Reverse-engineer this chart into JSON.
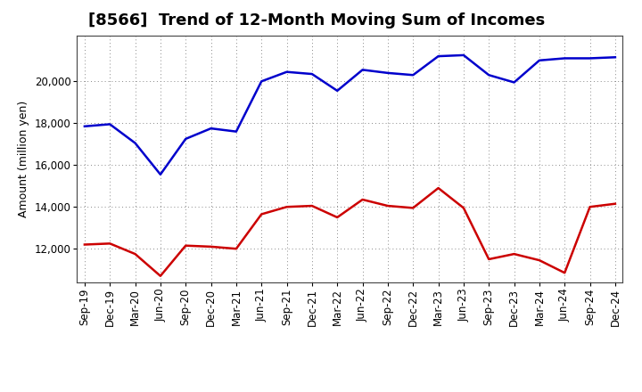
{
  "title": "[8566]  Trend of 12-Month Moving Sum of Incomes",
  "ylabel": "Amount (million yen)",
  "x_labels": [
    "Sep-19",
    "Dec-19",
    "Mar-20",
    "Jun-20",
    "Sep-20",
    "Dec-20",
    "Mar-21",
    "Jun-21",
    "Sep-21",
    "Dec-21",
    "Mar-22",
    "Jun-22",
    "Sep-22",
    "Dec-22",
    "Mar-23",
    "Jun-23",
    "Sep-23",
    "Dec-23",
    "Mar-24",
    "Jun-24",
    "Sep-24",
    "Dec-24"
  ],
  "ordinary_income": [
    17850,
    17950,
    17050,
    15550,
    17250,
    17750,
    17600,
    20000,
    20450,
    20350,
    19550,
    20550,
    20400,
    20300,
    21200,
    21250,
    20300,
    19950,
    21000,
    21100,
    21100,
    21150
  ],
  "net_income": [
    12200,
    12250,
    11750,
    10700,
    12150,
    12100,
    12000,
    13650,
    14000,
    14050,
    13500,
    14350,
    14050,
    13950,
    14900,
    13950,
    11500,
    11750,
    11450,
    10850,
    14000,
    14150
  ],
  "ordinary_color": "#0000cc",
  "net_color": "#cc0000",
  "ylim_min": 10400,
  "ylim_max": 22200,
  "yticks": [
    12000,
    14000,
    16000,
    18000,
    20000
  ],
  "background_color": "#ffffff",
  "grid_color": "#888888",
  "title_fontsize": 13,
  "axis_label_fontsize": 9,
  "tick_fontsize": 8.5,
  "legend_fontsize": 9.5
}
